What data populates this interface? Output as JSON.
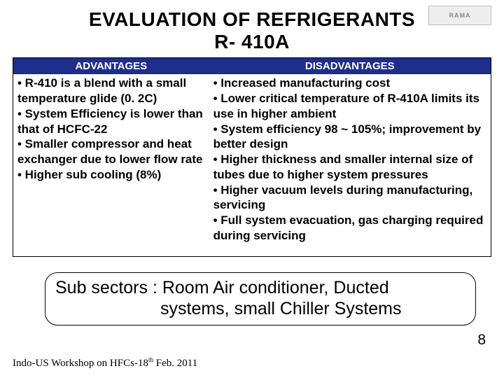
{
  "title_line1": "EVALUATION OF REFRIGERANTS",
  "title_line2": "R- 410A",
  "logo_text": "RAMA",
  "table": {
    "header_bg": "#1f2e8a",
    "header_color": "#ffffff",
    "headers": {
      "left": "ADVANTAGES",
      "right": "DISADVANTAGES"
    },
    "advantages": "• R-410 is a blend with a small temperature glide (0. 2C)\n• System Efficiency is lower than that of HCFC-22\n• Smaller compressor and heat exchanger due to lower flow rate\n• Higher sub cooling (8%)",
    "disadvantages": "• Increased manufacturing cost\n•  Lower critical temperature of R-410A limits its use in higher ambient\n•  System efficiency  98 ~ 105%; improvement by better design\n•  Higher thickness and smaller internal size of tubes due to higher system pressures\n•  Higher vacuum levels during manufacturing, servicing\n•  Full system evacuation, gas charging required during servicing"
  },
  "subsector": {
    "line1": "Sub sectors : Room Air conditioner, Ducted",
    "line2": "systems, small Chiller Systems"
  },
  "page_number": "8",
  "footer_prefix": "Indo-US Workshop on HFCs-18",
  "footer_super": "th",
  "footer_suffix": " Feb. 2011"
}
